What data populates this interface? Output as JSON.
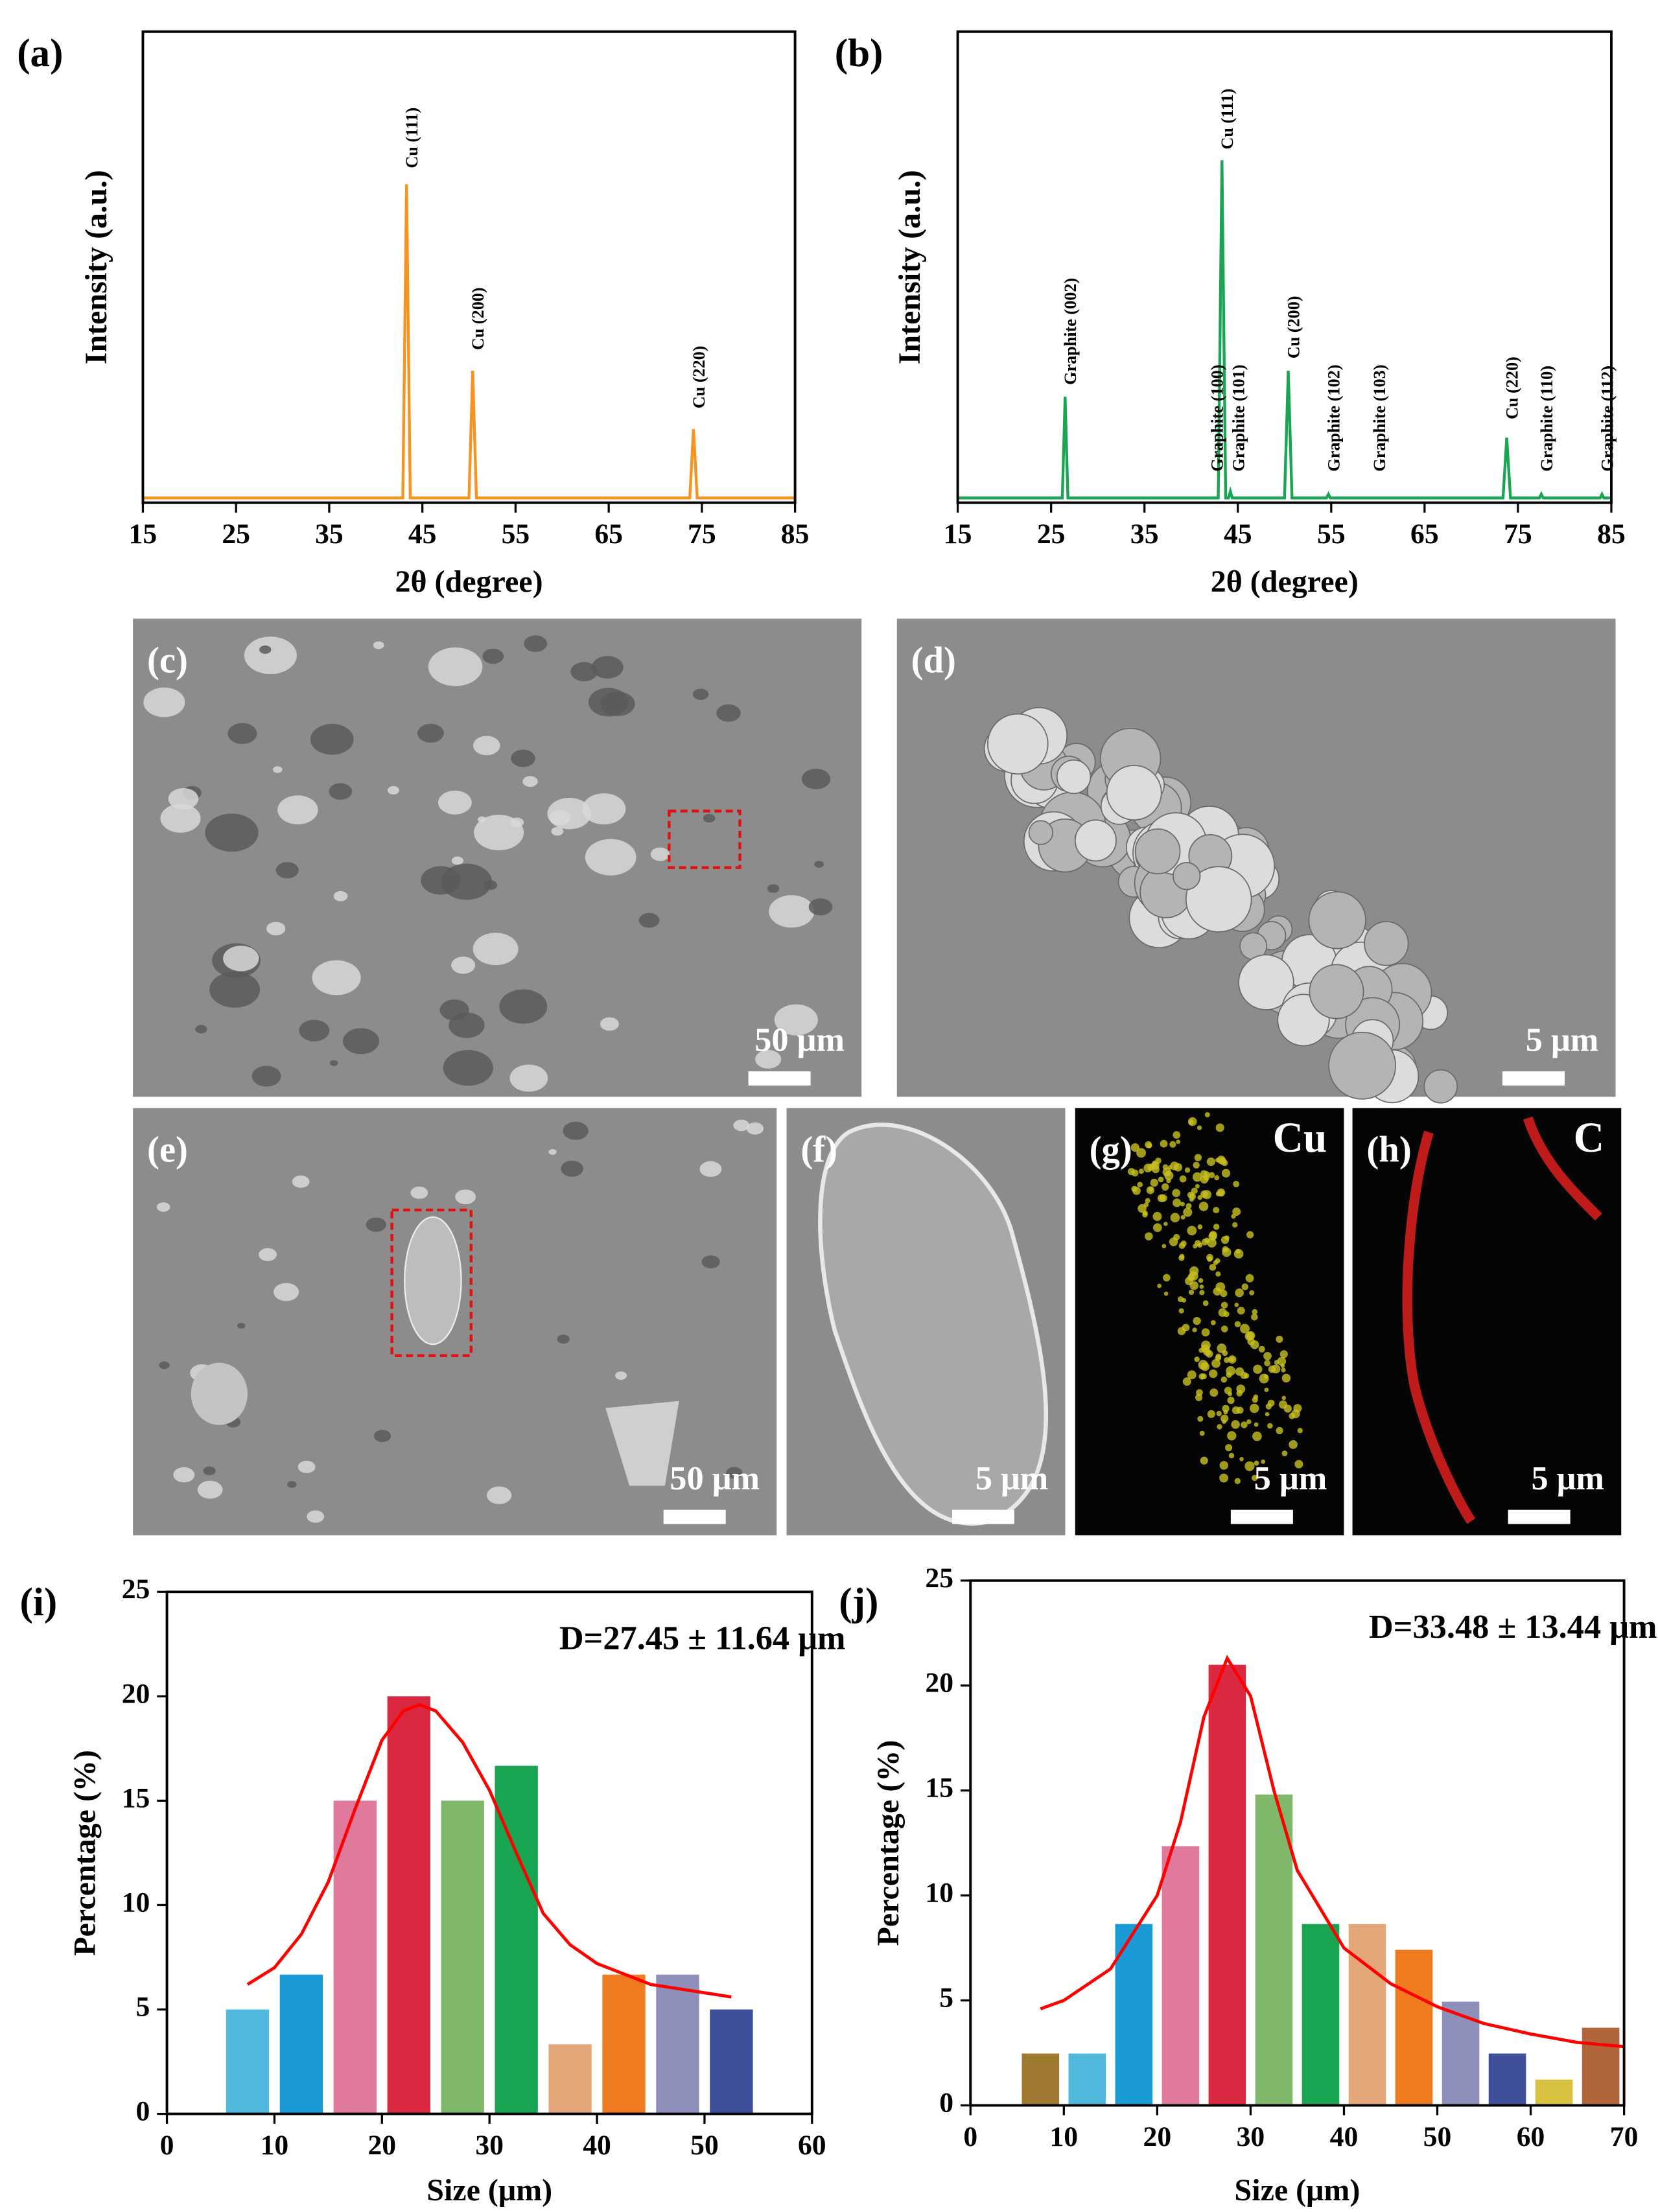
{
  "chart_data": [
    {
      "type": "line",
      "panel": "(a)",
      "xlabel": "2θ (degree)",
      "ylabel": "Intensity (a.u.)",
      "xlim": [
        15,
        85
      ],
      "xticks": [
        15,
        25,
        35,
        45,
        55,
        65,
        75,
        85
      ],
      "ylim": [
        0,
        100
      ],
      "series": [
        {
          "color": "#f7931e",
          "x": [
            15,
            42.9,
            43.3,
            43.7,
            50.0,
            50.4,
            50.8,
            73.7,
            74.1,
            74.5,
            85
          ],
          "values": [
            1,
            1,
            67.6,
            1,
            1,
            28,
            1,
            1,
            15.6,
            1,
            1
          ]
        }
      ],
      "annotations": [
        {
          "text": "Cu (111)",
          "x": 43.3,
          "y": 71
        },
        {
          "text": "Cu (200)",
          "x": 50.4,
          "y": 32.4
        },
        {
          "text": "Cu (220)",
          "x": 74.1,
          "y": 20
        }
      ]
    },
    {
      "type": "line",
      "panel": "(b)",
      "xlabel": "2θ (degree)",
      "ylabel": "Intensity (a.u.)",
      "xlim": [
        15,
        85
      ],
      "xticks": [
        15,
        25,
        35,
        45,
        55,
        65,
        75,
        85
      ],
      "ylim": [
        0,
        100
      ],
      "series": [
        {
          "color": "#1aa552",
          "x": [
            15,
            26.2,
            26.5,
            26.8,
            42.9,
            43.3,
            43.7,
            44.0,
            44.2,
            44.4,
            50.0,
            50.4,
            50.8,
            54.5,
            54.7,
            54.9,
            73.4,
            73.8,
            74.2,
            77.3,
            77.5,
            77.7,
            83.8,
            84.0,
            84.2,
            85
          ],
          "values": [
            1,
            1,
            22.5,
            1,
            1,
            72.7,
            1,
            1,
            2.4,
            1,
            1,
            28,
            1,
            1,
            1.8,
            1,
            1,
            13.8,
            1,
            1,
            1.8,
            1,
            1,
            1.8,
            1,
            1
          ]
        }
      ],
      "annotations": [
        {
          "text": "Graphite (002)",
          "x": 26.5,
          "y": 25
        },
        {
          "text": "Graphite (100)",
          "x": 42.2,
          "y": 6.6
        },
        {
          "text": "Cu (111)",
          "x": 43.3,
          "y": 75
        },
        {
          "text": "Graphite (101)",
          "x": 44.5,
          "y": 6.6
        },
        {
          "text": "Cu (200)",
          "x": 50.4,
          "y": 30.6
        },
        {
          "text": "Graphite (102)",
          "x": 54.7,
          "y": 6.6
        },
        {
          "text": "Graphite (103)",
          "x": 59.6,
          "y": 6.6
        },
        {
          "text": "Cu (220)",
          "x": 73.8,
          "y": 17.7
        },
        {
          "text": "Graphite (110)",
          "x": 77.5,
          "y": 6.6
        },
        {
          "text": "Graphite (112)",
          "x": 84,
          "y": 6.6
        }
      ]
    },
    {
      "type": "histogram",
      "panel": "(i)",
      "xlabel": "Size (μm)",
      "ylabel": "Percentage (%)",
      "annotation": "D=27.45 ± 11.64 μm",
      "xlim": [
        0,
        60
      ],
      "xticks": [
        0,
        10,
        20,
        30,
        40,
        50,
        60
      ],
      "ylim": [
        0,
        25
      ],
      "yticks": [
        0,
        5,
        10,
        15,
        20,
        25
      ],
      "bins": [
        5,
        10,
        15,
        20,
        25,
        30,
        35,
        40,
        45,
        50,
        55
      ],
      "values": [
        5,
        6.67,
        15,
        20,
        15,
        16.67,
        3.33,
        6.67,
        6.67,
        5
      ],
      "colors": [
        "#4fb8dc",
        "#1a9bd7",
        "#e07a9c",
        "#d9283f",
        "#7fb86a",
        "#1aa552",
        "#e3a77a",
        "#ef7a20",
        "#8e8fba",
        "#3f4f99"
      ],
      "fit": {
        "color": "#ff0000",
        "x": [
          7.5,
          10,
          12.5,
          15,
          17.5,
          20,
          22,
          23.5,
          25,
          27.5,
          30,
          32.5,
          35,
          37.5,
          40,
          45,
          52.5
        ],
        "values": [
          6.2,
          7.0,
          8.6,
          11.1,
          14.6,
          17.9,
          19.3,
          19.6,
          19.3,
          17.8,
          15.5,
          12.5,
          9.6,
          8.1,
          7.2,
          6.2,
          5.6
        ]
      }
    },
    {
      "type": "histogram",
      "panel": "(j)",
      "xlabel": "Size (μm)",
      "ylabel": "Percentage (%)",
      "annotation": "D=33.48 ± 13.44 μm",
      "xlim": [
        0,
        70
      ],
      "xticks": [
        0,
        10,
        20,
        30,
        40,
        50,
        60,
        70
      ],
      "ylim": [
        0,
        25
      ],
      "yticks": [
        0,
        5,
        10,
        15,
        20,
        25
      ],
      "bins": [
        5,
        10,
        15,
        20,
        25,
        30,
        35,
        40,
        45,
        50,
        55,
        60,
        65,
        70
      ],
      "values": [
        2.47,
        2.47,
        8.64,
        12.35,
        20.99,
        14.81,
        8.64,
        8.64,
        7.41,
        4.94,
        2.47,
        1.23,
        3.7
      ],
      "colors": [
        "#a07a30",
        "#4fb8dc",
        "#1a9bd7",
        "#e07a9c",
        "#d9283f",
        "#7fb86a",
        "#1aa552",
        "#e3a77a",
        "#ef7a20",
        "#8e8fba",
        "#3f4f99",
        "#d8c040",
        "#b0653a"
      ],
      "fit": {
        "color": "#ff0000",
        "x": [
          7.5,
          10,
          15,
          20,
          22.5,
          25,
          27.5,
          30,
          32.5,
          35,
          40,
          45,
          50,
          55,
          60,
          65,
          70
        ],
        "values": [
          4.6,
          5.0,
          6.5,
          10.0,
          13.5,
          18.5,
          21.3,
          19.5,
          15.0,
          11.2,
          7.5,
          5.8,
          4.7,
          3.9,
          3.4,
          3.0,
          2.8
        ]
      }
    }
  ],
  "images": [
    {
      "label": "(c)",
      "scale": "50 μm"
    },
    {
      "label": "(d)",
      "scale": "5 μm"
    },
    {
      "label": "(e)",
      "scale": "50 μm"
    },
    {
      "label": "(f)",
      "scale": "5 μm"
    },
    {
      "label": "(g)",
      "scale": "5 μm",
      "element": "Cu"
    },
    {
      "label": "(h)",
      "scale": "5 μm",
      "element": "C"
    }
  ]
}
